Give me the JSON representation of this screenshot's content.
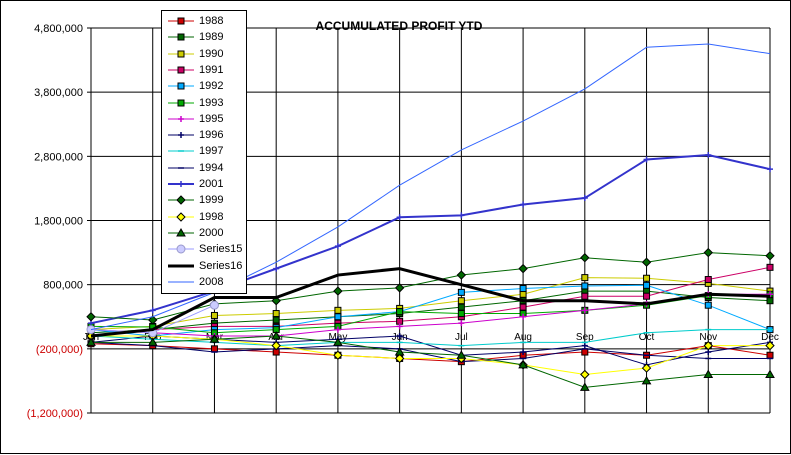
{
  "chart_data": {
    "type": "line",
    "title": "ACCUMULATED PROFIT YTD",
    "xlabel": "",
    "ylabel": "",
    "categories": [
      "Jan",
      "Feb",
      "Mar",
      "Apr",
      "May",
      "Jun",
      "Jul",
      "Aug",
      "Sep",
      "Oct",
      "Nov",
      "Dec"
    ],
    "yticks": [
      "4,800,000",
      "3,800,000",
      "2,800,000",
      "1,800,000",
      "800,000",
      "(200,000)",
      "(1,200,000)"
    ],
    "ytick_values": [
      4800000,
      3800000,
      2800000,
      1800000,
      800000,
      -200000,
      -1200000
    ],
    "negative_tick_color": "#cc0000",
    "ylim": [
      -1200000,
      4800000
    ],
    "grid": true,
    "legend_position": "top-left",
    "series": [
      {
        "name": "1988",
        "color": "#cc0000",
        "marker": "square",
        "values": [
          -120000,
          -150000,
          -200000,
          -250000,
          -300000,
          -350000,
          -400000,
          -300000,
          -250000,
          -300000,
          -150000,
          -300000
        ]
      },
      {
        "name": "1989",
        "color": "#006600",
        "marker": "square",
        "values": [
          50000,
          100000,
          200000,
          250000,
          300000,
          350000,
          450000,
          550000,
          700000,
          700000,
          600000,
          550000
        ]
      },
      {
        "name": "1990",
        "color": "#cccc00",
        "marker": "square",
        "values": [
          100000,
          150000,
          320000,
          350000,
          400000,
          430000,
          550000,
          650000,
          910000,
          900000,
          820000,
          700000
        ]
      },
      {
        "name": "1991",
        "color": "#cc0066",
        "marker": "square",
        "values": [
          0,
          100000,
          150000,
          150000,
          200000,
          230000,
          300000,
          450000,
          620000,
          620000,
          880000,
          1070000
        ]
      },
      {
        "name": "1992",
        "color": "#00aaff",
        "marker": "square",
        "values": [
          100000,
          0,
          100000,
          130000,
          300000,
          380000,
          680000,
          740000,
          780000,
          790000,
          480000,
          100000
        ]
      },
      {
        "name": "1993",
        "color": "#00aa00",
        "marker": "square",
        "values": [
          150000,
          140000,
          50000,
          100000,
          150000,
          380000,
          350000,
          350000,
          400000,
          480000,
          630000,
          650000
        ]
      },
      {
        "name": "1995",
        "color": "#cc00cc",
        "marker": "plus",
        "values": [
          100000,
          50000,
          0,
          0,
          100000,
          150000,
          200000,
          300000,
          400000,
          500000,
          650000,
          650000
        ]
      },
      {
        "name": "1996",
        "color": "#000066",
        "marker": "plus",
        "values": [
          -100000,
          0,
          -50000,
          -100000,
          -50000,
          0,
          -300000,
          -250000,
          -150000,
          -450000,
          -250000,
          -100000
        ]
      },
      {
        "name": "1997",
        "color": "#00cccc",
        "marker": "dash",
        "values": [
          0,
          -50000,
          -100000,
          -150000,
          -100000,
          -100000,
          -150000,
          -100000,
          -100000,
          50000,
          100000,
          100000
        ]
      },
      {
        "name": "1994",
        "color": "#000066",
        "marker": "dash",
        "values": [
          -100000,
          -150000,
          -250000,
          -200000,
          -150000,
          -200000,
          -400000,
          -350000,
          -200000,
          -300000,
          -350000,
          -350000
        ]
      },
      {
        "name": "2001",
        "color": "#3333cc",
        "marker": "plus",
        "values": [
          200000,
          400000,
          700000,
          1050000,
          1400000,
          1850000,
          1880000,
          2050000,
          2150000,
          2750000,
          2820000,
          2600000
        ]
      },
      {
        "name": "1999",
        "color": "#006600",
        "marker": "diamond",
        "values": [
          300000,
          250000,
          500000,
          550000,
          700000,
          750000,
          950000,
          1050000,
          1220000,
          1150000,
          1300000,
          1250000
        ]
      },
      {
        "name": "1998",
        "color": "#ffff00",
        "marker": "diamond",
        "values": [
          0,
          0,
          -50000,
          -150000,
          -300000,
          -350000,
          -350000,
          -450000,
          -600000,
          -500000,
          -150000,
          -150000
        ]
      },
      {
        "name": "2000",
        "color": "#006600",
        "marker": "triangle",
        "values": [
          -100000,
          -100000,
          -50000,
          0,
          -100000,
          -250000,
          -300000,
          -450000,
          -800000,
          -700000,
          -600000,
          -600000
        ]
      },
      {
        "name": "Series15",
        "color": "#ccccff",
        "marker": "circle",
        "values": [
          100000,
          50000,
          480000,
          null,
          null,
          null,
          null,
          null,
          null,
          null,
          null,
          null
        ]
      },
      {
        "name": "Series16",
        "color": "#000000",
        "marker": "thick",
        "values": [
          0,
          100000,
          600000,
          600000,
          950000,
          1050000,
          800000,
          550000,
          550000,
          500000,
          650000,
          620000
        ]
      },
      {
        "name": "2008",
        "color": "#3366ff",
        "marker": "thin",
        "values": [
          100000,
          300000,
          680000,
          1150000,
          1700000,
          2350000,
          2900000,
          3350000,
          3850000,
          4500000,
          4550000,
          4400000
        ]
      }
    ]
  }
}
